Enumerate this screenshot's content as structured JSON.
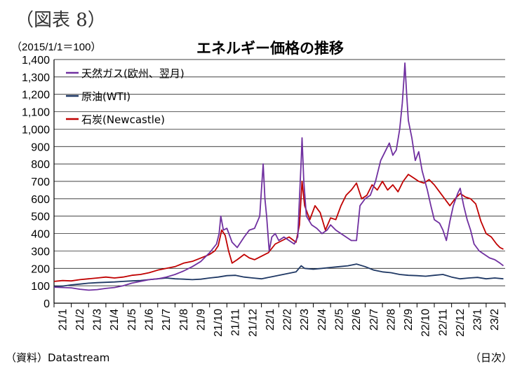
{
  "figure_label": "（図表 8）",
  "source_note": "（資料）Datastream",
  "x_unit_note": "（日次）",
  "chart_data": {
    "type": "line",
    "title": "エネルギー価格の推移",
    "ylabel": "（2015/1/1＝100）",
    "xlabel": "",
    "ylim": [
      0,
      1400
    ],
    "xlim": [
      0,
      26.1
    ],
    "yticks": [
      0,
      100,
      200,
      300,
      400,
      500,
      600,
      700,
      800,
      900,
      1000,
      1100,
      1200,
      1300,
      1400
    ],
    "ytick_labels": [
      "0",
      "100",
      "200",
      "300",
      "400",
      "500",
      "600",
      "700",
      "800",
      "900",
      "1,000",
      "1,100",
      "1,200",
      "1,300",
      "1,400"
    ],
    "categories": [
      "21/1",
      "21/2",
      "21/3",
      "21/4",
      "21/5",
      "21/6",
      "21/7",
      "21/8",
      "21/9",
      "21/10",
      "21/11",
      "21/12",
      "22/1",
      "22/2",
      "22/3",
      "22/4",
      "22/5",
      "22/6",
      "22/7",
      "22/8",
      "22/9",
      "22/10",
      "22/11",
      "22/12",
      "23/1",
      "23/2"
    ],
    "grid": true,
    "legend": "top-left",
    "series": [
      {
        "name": "天然ガス(欧州、翌月)",
        "color": "#7030a0",
        "points": [
          [
            0,
            92
          ],
          [
            0.5,
            90
          ],
          [
            1,
            88
          ],
          [
            1.5,
            80
          ],
          [
            2,
            75
          ],
          [
            2.5,
            78
          ],
          [
            3,
            85
          ],
          [
            3.5,
            90
          ],
          [
            4,
            100
          ],
          [
            4.5,
            115
          ],
          [
            5,
            125
          ],
          [
            5.5,
            135
          ],
          [
            6,
            140
          ],
          [
            6.5,
            150
          ],
          [
            7,
            165
          ],
          [
            7.5,
            185
          ],
          [
            8,
            210
          ],
          [
            8.5,
            240
          ],
          [
            9,
            290
          ],
          [
            9.4,
            340
          ],
          [
            9.55,
            400
          ],
          [
            9.65,
            500
          ],
          [
            9.8,
            420
          ],
          [
            10,
            430
          ],
          [
            10.3,
            350
          ],
          [
            10.6,
            320
          ],
          [
            11,
            380
          ],
          [
            11.3,
            420
          ],
          [
            11.6,
            430
          ],
          [
            11.9,
            500
          ],
          [
            12.0,
            650
          ],
          [
            12.1,
            800
          ],
          [
            12.2,
            600
          ],
          [
            12.3,
            500
          ],
          [
            12.45,
            300
          ],
          [
            12.6,
            380
          ],
          [
            12.8,
            400
          ],
          [
            13,
            360
          ],
          [
            13.3,
            380
          ],
          [
            13.6,
            360
          ],
          [
            13.9,
            340
          ],
          [
            14.1,
            380
          ],
          [
            14.2,
            600
          ],
          [
            14.3,
            820
          ],
          [
            14.35,
            950
          ],
          [
            14.45,
            700
          ],
          [
            14.6,
            500
          ],
          [
            14.9,
            450
          ],
          [
            15.2,
            430
          ],
          [
            15.5,
            400
          ],
          [
            15.8,
            420
          ],
          [
            16,
            450
          ],
          [
            16.3,
            420
          ],
          [
            16.6,
            400
          ],
          [
            16.9,
            380
          ],
          [
            17.2,
            360
          ],
          [
            17.5,
            360
          ],
          [
            17.7,
            560
          ],
          [
            18,
            600
          ],
          [
            18.3,
            620
          ],
          [
            18.6,
            700
          ],
          [
            18.9,
            820
          ],
          [
            19.2,
            880
          ],
          [
            19.4,
            920
          ],
          [
            19.6,
            850
          ],
          [
            19.8,
            880
          ],
          [
            20,
            1000
          ],
          [
            20.15,
            1150
          ],
          [
            20.25,
            1300
          ],
          [
            20.3,
            1380
          ],
          [
            20.4,
            1200
          ],
          [
            20.5,
            1050
          ],
          [
            20.7,
            950
          ],
          [
            20.9,
            820
          ],
          [
            21.1,
            870
          ],
          [
            21.3,
            760
          ],
          [
            21.6,
            650
          ],
          [
            21.8,
            560
          ],
          [
            22.0,
            480
          ],
          [
            22.3,
            460
          ],
          [
            22.5,
            420
          ],
          [
            22.7,
            360
          ],
          [
            22.9,
            470
          ],
          [
            23.1,
            560
          ],
          [
            23.35,
            630
          ],
          [
            23.5,
            660
          ],
          [
            23.7,
            560
          ],
          [
            23.9,
            480
          ],
          [
            24.1,
            420
          ],
          [
            24.3,
            340
          ],
          [
            24.6,
            300
          ],
          [
            24.9,
            280
          ],
          [
            25.2,
            260
          ],
          [
            25.5,
            250
          ],
          [
            25.8,
            230
          ],
          [
            26.0,
            215
          ]
        ]
      },
      {
        "name": "原油(WTI)",
        "color": "#1f3864",
        "points": [
          [
            0,
            95
          ],
          [
            0.5,
            98
          ],
          [
            1,
            105
          ],
          [
            1.5,
            110
          ],
          [
            2,
            115
          ],
          [
            2.5,
            118
          ],
          [
            3,
            120
          ],
          [
            3.5,
            122
          ],
          [
            4,
            125
          ],
          [
            4.5,
            128
          ],
          [
            5,
            130
          ],
          [
            5.5,
            135
          ],
          [
            6,
            140
          ],
          [
            6.5,
            145
          ],
          [
            7,
            140
          ],
          [
            7.5,
            138
          ],
          [
            8,
            135
          ],
          [
            8.5,
            138
          ],
          [
            9,
            145
          ],
          [
            9.5,
            150
          ],
          [
            10,
            158
          ],
          [
            10.5,
            160
          ],
          [
            11,
            150
          ],
          [
            11.5,
            145
          ],
          [
            12,
            140
          ],
          [
            12.5,
            150
          ],
          [
            13,
            160
          ],
          [
            13.5,
            170
          ],
          [
            14,
            180
          ],
          [
            14.3,
            215
          ],
          [
            14.5,
            200
          ],
          [
            15,
            195
          ],
          [
            15.5,
            200
          ],
          [
            16,
            205
          ],
          [
            16.5,
            210
          ],
          [
            17,
            215
          ],
          [
            17.5,
            225
          ],
          [
            18,
            210
          ],
          [
            18.5,
            190
          ],
          [
            19,
            180
          ],
          [
            19.5,
            175
          ],
          [
            20,
            165
          ],
          [
            20.5,
            160
          ],
          [
            21,
            158
          ],
          [
            21.5,
            155
          ],
          [
            22,
            160
          ],
          [
            22.5,
            165
          ],
          [
            23,
            150
          ],
          [
            23.5,
            140
          ],
          [
            24,
            145
          ],
          [
            24.5,
            148
          ],
          [
            25,
            140
          ],
          [
            25.5,
            145
          ],
          [
            26,
            140
          ]
        ]
      },
      {
        "name": "石炭(Newcastle)",
        "color": "#c00000",
        "points": [
          [
            0,
            125
          ],
          [
            0.5,
            130
          ],
          [
            1,
            128
          ],
          [
            1.5,
            135
          ],
          [
            2,
            140
          ],
          [
            2.5,
            145
          ],
          [
            3,
            150
          ],
          [
            3.5,
            145
          ],
          [
            4,
            150
          ],
          [
            4.5,
            160
          ],
          [
            5,
            165
          ],
          [
            5.5,
            175
          ],
          [
            6,
            190
          ],
          [
            6.5,
            200
          ],
          [
            7,
            210
          ],
          [
            7.5,
            230
          ],
          [
            8,
            240
          ],
          [
            8.5,
            260
          ],
          [
            9,
            280
          ],
          [
            9.3,
            300
          ],
          [
            9.5,
            330
          ],
          [
            9.7,
            420
          ],
          [
            9.9,
            390
          ],
          [
            10.1,
            300
          ],
          [
            10.3,
            230
          ],
          [
            10.6,
            250
          ],
          [
            11,
            280
          ],
          [
            11.3,
            260
          ],
          [
            11.6,
            250
          ],
          [
            12,
            270
          ],
          [
            12.4,
            290
          ],
          [
            12.8,
            340
          ],
          [
            13.2,
            360
          ],
          [
            13.6,
            380
          ],
          [
            14.0,
            350
          ],
          [
            14.2,
            450
          ],
          [
            14.35,
            700
          ],
          [
            14.5,
            560
          ],
          [
            14.8,
            480
          ],
          [
            15.1,
            560
          ],
          [
            15.4,
            520
          ],
          [
            15.7,
            420
          ],
          [
            16.0,
            490
          ],
          [
            16.3,
            480
          ],
          [
            16.6,
            560
          ],
          [
            16.9,
            620
          ],
          [
            17.2,
            650
          ],
          [
            17.5,
            690
          ],
          [
            17.8,
            600
          ],
          [
            18.1,
            620
          ],
          [
            18.4,
            680
          ],
          [
            18.7,
            650
          ],
          [
            19.0,
            700
          ],
          [
            19.3,
            650
          ],
          [
            19.6,
            680
          ],
          [
            19.9,
            640
          ],
          [
            20.2,
            700
          ],
          [
            20.5,
            740
          ],
          [
            20.8,
            720
          ],
          [
            21.1,
            700
          ],
          [
            21.4,
            690
          ],
          [
            21.7,
            710
          ],
          [
            22.0,
            680
          ],
          [
            22.3,
            640
          ],
          [
            22.6,
            600
          ],
          [
            22.9,
            560
          ],
          [
            23.2,
            600
          ],
          [
            23.5,
            630
          ],
          [
            23.8,
            610
          ],
          [
            24.1,
            600
          ],
          [
            24.4,
            570
          ],
          [
            24.7,
            470
          ],
          [
            25.0,
            400
          ],
          [
            25.3,
            380
          ],
          [
            25.6,
            340
          ],
          [
            25.8,
            320
          ],
          [
            26.0,
            310
          ]
        ]
      }
    ]
  }
}
